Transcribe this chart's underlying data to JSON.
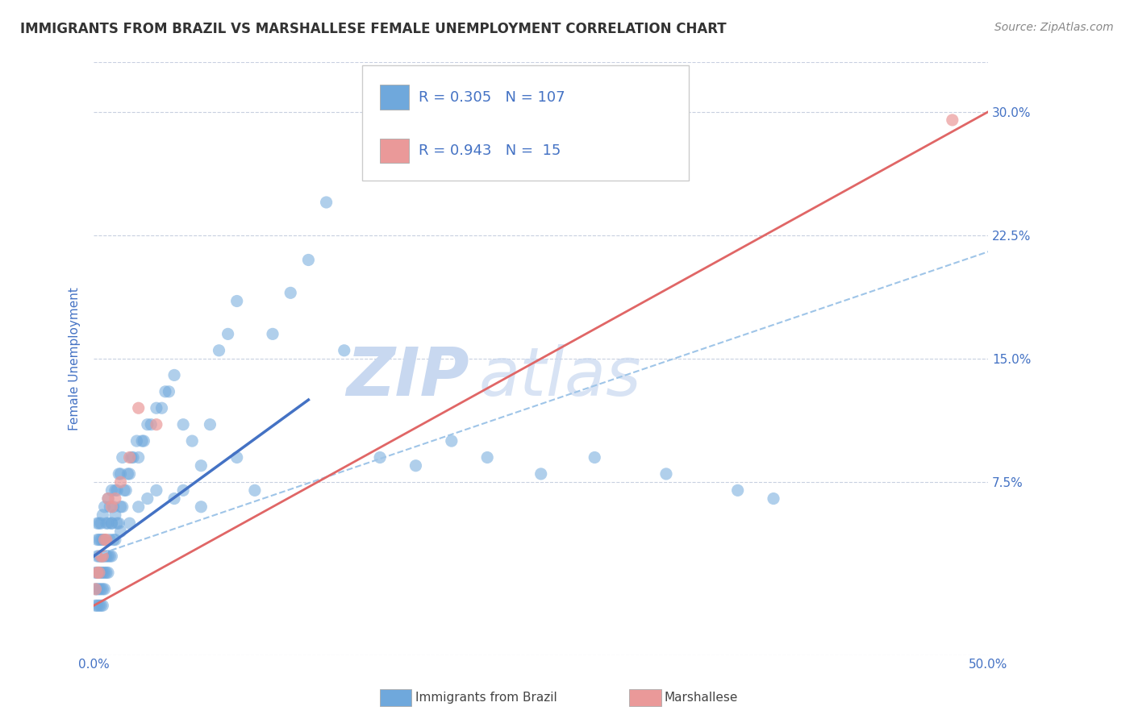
{
  "title": "IMMIGRANTS FROM BRAZIL VS MARSHALLESE FEMALE UNEMPLOYMENT CORRELATION CHART",
  "source": "Source: ZipAtlas.com",
  "ylabel": "Female Unemployment",
  "xlim": [
    0.0,
    0.5
  ],
  "ylim": [
    -0.03,
    0.33
  ],
  "ytick_positions": [
    0.075,
    0.15,
    0.225,
    0.3
  ],
  "ytick_labels": [
    "7.5%",
    "15.0%",
    "22.5%",
    "30.0%"
  ],
  "blue_color": "#6fa8dc",
  "pink_color": "#ea9999",
  "trend_blue_color": "#4472c4",
  "trend_blue_dash_color": "#9fc5e8",
  "trend_pink_color": "#e06666",
  "blue_R": 0.305,
  "blue_N": 107,
  "pink_R": 0.943,
  "pink_N": 15,
  "blue_scatter_x": [
    0.001,
    0.001,
    0.001,
    0.002,
    0.002,
    0.002,
    0.002,
    0.002,
    0.002,
    0.003,
    0.003,
    0.003,
    0.003,
    0.003,
    0.003,
    0.004,
    0.004,
    0.004,
    0.004,
    0.004,
    0.005,
    0.005,
    0.005,
    0.005,
    0.005,
    0.006,
    0.006,
    0.006,
    0.006,
    0.007,
    0.007,
    0.007,
    0.008,
    0.008,
    0.008,
    0.009,
    0.009,
    0.009,
    0.01,
    0.01,
    0.01,
    0.011,
    0.011,
    0.012,
    0.012,
    0.013,
    0.013,
    0.014,
    0.014,
    0.015,
    0.015,
    0.016,
    0.016,
    0.017,
    0.018,
    0.019,
    0.02,
    0.021,
    0.022,
    0.024,
    0.025,
    0.027,
    0.028,
    0.03,
    0.032,
    0.035,
    0.038,
    0.04,
    0.042,
    0.045,
    0.05,
    0.055,
    0.06,
    0.065,
    0.07,
    0.075,
    0.08,
    0.09,
    0.1,
    0.11,
    0.12,
    0.13,
    0.14,
    0.16,
    0.18,
    0.2,
    0.22,
    0.25,
    0.28,
    0.32,
    0.36,
    0.38,
    0.004,
    0.005,
    0.006,
    0.008,
    0.01,
    0.012,
    0.015,
    0.02,
    0.025,
    0.03,
    0.035,
    0.045,
    0.05,
    0.06,
    0.08
  ],
  "blue_scatter_y": [
    0.0,
    0.01,
    0.02,
    0.0,
    0.01,
    0.02,
    0.03,
    0.04,
    0.05,
    0.0,
    0.01,
    0.02,
    0.03,
    0.04,
    0.05,
    0.0,
    0.01,
    0.02,
    0.03,
    0.04,
    0.0,
    0.01,
    0.02,
    0.03,
    0.04,
    0.01,
    0.02,
    0.03,
    0.04,
    0.02,
    0.03,
    0.05,
    0.02,
    0.03,
    0.05,
    0.03,
    0.04,
    0.06,
    0.03,
    0.05,
    0.07,
    0.04,
    0.06,
    0.04,
    0.07,
    0.05,
    0.07,
    0.05,
    0.08,
    0.06,
    0.08,
    0.06,
    0.09,
    0.07,
    0.07,
    0.08,
    0.08,
    0.09,
    0.09,
    0.1,
    0.09,
    0.1,
    0.1,
    0.11,
    0.11,
    0.12,
    0.12,
    0.13,
    0.13,
    0.14,
    0.11,
    0.1,
    0.06,
    0.11,
    0.155,
    0.165,
    0.185,
    0.07,
    0.165,
    0.19,
    0.21,
    0.245,
    0.155,
    0.09,
    0.085,
    0.1,
    0.09,
    0.08,
    0.09,
    0.08,
    0.07,
    0.065,
    0.05,
    0.055,
    0.06,
    0.065,
    0.05,
    0.055,
    0.045,
    0.05,
    0.06,
    0.065,
    0.07,
    0.065,
    0.07,
    0.085,
    0.09
  ],
  "pink_scatter_x": [
    0.001,
    0.002,
    0.003,
    0.004,
    0.005,
    0.006,
    0.007,
    0.008,
    0.01,
    0.012,
    0.015,
    0.02,
    0.025,
    0.035,
    0.48
  ],
  "pink_scatter_y": [
    0.01,
    0.02,
    0.02,
    0.03,
    0.03,
    0.04,
    0.04,
    0.065,
    0.06,
    0.065,
    0.075,
    0.09,
    0.12,
    0.11,
    0.295
  ],
  "watermark_zip": "ZIP",
  "watermark_atlas": "atlas",
  "watermark_color": "#c8d8f0",
  "blue_solid_trend_x": [
    0.0,
    0.12
  ],
  "blue_solid_trend_y": [
    0.03,
    0.125
  ],
  "blue_dash_trend_x": [
    0.0,
    0.5
  ],
  "blue_dash_trend_y": [
    0.03,
    0.215
  ],
  "pink_trend_x": [
    0.0,
    0.5
  ],
  "pink_trend_y": [
    0.0,
    0.3
  ],
  "bg_color": "#ffffff",
  "grid_color": "#c8d0e0",
  "title_color": "#333333",
  "axis_color": "#4472c4",
  "legend_blue_label": "Immigrants from Brazil",
  "legend_pink_label": "Marshallese"
}
